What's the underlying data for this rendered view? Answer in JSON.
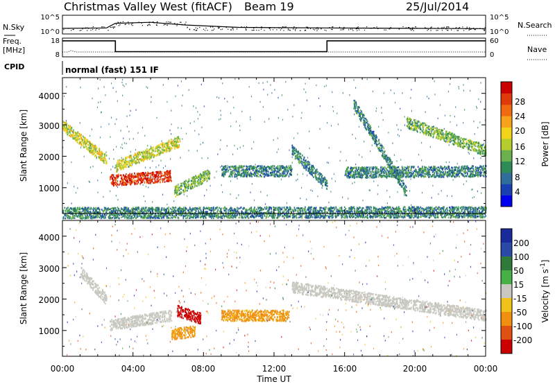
{
  "header": {
    "title": "Christmas Valley West (fitACF)",
    "beam": "Beam 19",
    "date": "25/Jul/2014"
  },
  "panels": {
    "nsky": {
      "label": "N.Sky",
      "ticks_left": [
        "10^5",
        "10^0"
      ],
      "ticks_right": [
        "10^5",
        "10^0"
      ],
      "right_label": "N.Search"
    },
    "freq": {
      "label_line1": "Freq.",
      "label_line2": "[MHz]",
      "ticks_left": [
        "18",
        "8"
      ],
      "ticks_right": [
        "60",
        "0"
      ],
      "right_label": "Nave"
    },
    "cpid": {
      "label": "CPID",
      "text": "normal (fast) 151 IF"
    }
  },
  "colorbars": {
    "power": {
      "label": "Power [dB]",
      "ticks": [
        "28",
        "24",
        "20",
        "16",
        "12",
        "8",
        "4"
      ],
      "colors": [
        "#0000ee",
        "#1a3fb0",
        "#2f6e9a",
        "#2e8b57",
        "#6ab04c",
        "#b5cc2e",
        "#f2d21a",
        "#f7a21a",
        "#f06a12",
        "#e03a0a",
        "#cc0000"
      ]
    },
    "velocity": {
      "label_main": "Velocity [m s",
      "label_sup": "-1",
      "label_end": "]",
      "ticks": [
        "200",
        "100",
        "50",
        "15",
        "-15",
        "-50",
        "-100",
        "-200"
      ],
      "colors": [
        "#1a2a9a",
        "#2a4aa8",
        "#2e7a3a",
        "#46b046",
        "#c8c8c0",
        "#f2c21a",
        "#f09010",
        "#e05010",
        "#cc0000"
      ]
    }
  },
  "axes": {
    "y_label": "Slant Range [km]",
    "y_ticks": [
      "4000",
      "3000",
      "2000",
      "1000"
    ],
    "x_ticks": [
      "00:00",
      "04:00",
      "08:00",
      "12:00",
      "16:00",
      "20:00",
      "00:00"
    ],
    "x_label": "Time UT"
  },
  "chart_data": [
    {
      "type": "line",
      "title": "N.Sky",
      "x_range": [
        "00:00",
        "24:00"
      ],
      "y_scale": "log",
      "series": [
        {
          "x": [
            "00:00",
            "02:30",
            "03:00",
            "05:00",
            "07:00",
            "10:00",
            "15:00",
            "20:00",
            "24:00"
          ],
          "y": [
            30,
            40,
            1000,
            2000,
            300,
            60,
            40,
            30,
            25
          ]
        }
      ]
    },
    {
      "type": "line",
      "title": "Freq. [MHz]",
      "x_range": [
        "00:00",
        "24:00"
      ],
      "ylim": [
        8,
        18
      ],
      "series": [
        {
          "x": [
            "00:00",
            "03:00",
            "03:00",
            "15:00",
            "15:00",
            "24:00"
          ],
          "y": [
            16.5,
            16.5,
            10.5,
            10.5,
            16.5,
            16.5
          ]
        }
      ]
    },
    {
      "type": "heatmap",
      "title": "Power [dB]",
      "x_range": [
        "00:00",
        "24:00"
      ],
      "ylim": [
        180,
        4500
      ],
      "features": [
        {
          "name": "evening-band",
          "start": [
            "00:00",
            3000
          ],
          "end": [
            "02:30",
            1900
          ],
          "peak_db": 16
        },
        {
          "name": "red-blob",
          "start": [
            "02:40",
            1250
          ],
          "end": [
            "06:10",
            1400
          ],
          "peak_db": 28
        },
        {
          "name": "rising-arc",
          "start": [
            "03:00",
            1700
          ],
          "end": [
            "06:40",
            2500
          ],
          "peak_db": 16
        },
        {
          "name": "band-0800",
          "start": [
            "06:20",
            900
          ],
          "end": [
            "08:20",
            1450
          ],
          "peak_db": 12
        },
        {
          "name": "band-1000",
          "start": [
            "09:00",
            1550
          ],
          "end": [
            "13:00",
            1550
          ],
          "peak_db": 8
        },
        {
          "name": "arc-1400",
          "start": [
            "13:00",
            2200
          ],
          "end": [
            "15:00",
            1100
          ],
          "peak_db": 8
        },
        {
          "name": "arc-1700",
          "start": [
            "16:30",
            3700
          ],
          "end": [
            "19:30",
            900
          ],
          "peak_db": 8
        },
        {
          "name": "arc-2000",
          "start": [
            "19:30",
            3100
          ],
          "end": [
            "24:00",
            2200
          ],
          "peak_db": 12
        },
        {
          "name": "band-2200",
          "start": [
            "16:00",
            1500
          ],
          "end": [
            "24:00",
            1550
          ],
          "peak_db": 8
        },
        {
          "name": "ground-scatter",
          "start": [
            "00:00",
            220
          ],
          "end": [
            "24:00",
            250
          ],
          "peak_db": 8
        }
      ]
    },
    {
      "type": "heatmap",
      "title": "Velocity [m s-1]",
      "x_range": [
        "00:00",
        "24:00"
      ],
      "ylim": [
        180,
        4500
      ],
      "features": [
        {
          "name": "evening-band",
          "start": [
            "01:00",
            2900
          ],
          "end": [
            "02:30",
            2000
          ],
          "velocity": 0
        },
        {
          "name": "main-blob",
          "start": [
            "02:40",
            1200
          ],
          "end": [
            "06:10",
            1500
          ],
          "velocity": 0
        },
        {
          "name": "red-streak",
          "start": [
            "06:30",
            1650
          ],
          "end": [
            "07:50",
            1400
          ],
          "velocity": -200
        },
        {
          "name": "orange-band",
          "start": [
            "06:10",
            900
          ],
          "end": [
            "07:30",
            1000
          ],
          "velocity": -60
        },
        {
          "name": "orange-band-1000",
          "start": [
            "09:00",
            1500
          ],
          "end": [
            "12:50",
            1500
          ],
          "velocity": -60
        },
        {
          "name": "grey-arcs",
          "start": [
            "13:00",
            2400
          ],
          "end": [
            "24:00",
            1500
          ],
          "velocity": 0
        }
      ]
    }
  ]
}
